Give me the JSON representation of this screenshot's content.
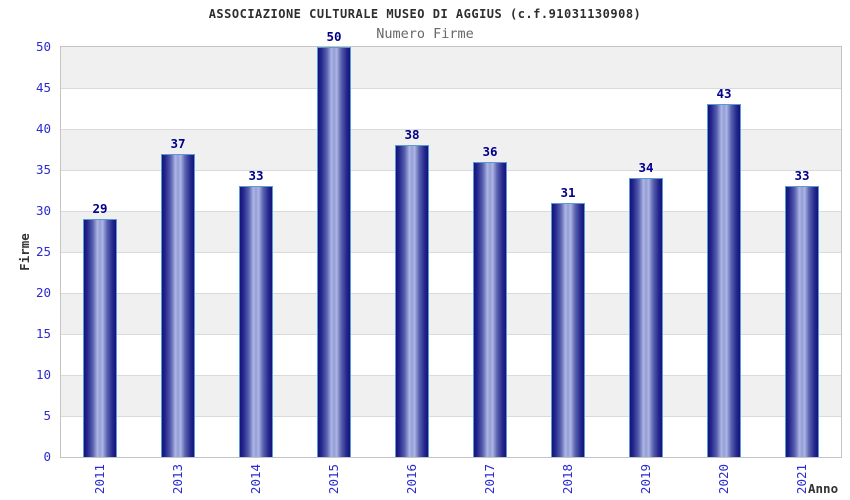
{
  "chart_data": {
    "type": "bar",
    "title": "ASSOCIAZIONE CULTURALE MUSEO DI AGGIUS (c.f.91031130908)",
    "subtitle": "Numero Firme",
    "xlabel": "Anno",
    "ylabel": "Firme",
    "categories": [
      "2011",
      "2013",
      "2014",
      "2015",
      "2016",
      "2017",
      "2018",
      "2019",
      "2020",
      "2021"
    ],
    "values": [
      29,
      37,
      33,
      50,
      38,
      36,
      31,
      34,
      43,
      33
    ],
    "ylim": [
      0,
      50
    ],
    "y_ticks": [
      0,
      5,
      10,
      15,
      20,
      25,
      30,
      35,
      40,
      45,
      50
    ],
    "grid": "horizontal-bands-alternating",
    "legend": "none",
    "colors": {
      "bar_edge_dark": "#14147c",
      "bar_center_light": "#aeb6e4",
      "bar_border": "#5b9bd5",
      "value_label": "#00008b",
      "tick_label": "#2b2bd0",
      "band_gray": "#f0f0f0",
      "band_white": "#ffffff",
      "gridline": "#dadada",
      "plot_border": "#c4c4c4",
      "title_text": "#2e2e2e",
      "subtitle_text": "#686868",
      "axis_label_text": "#333333"
    }
  }
}
